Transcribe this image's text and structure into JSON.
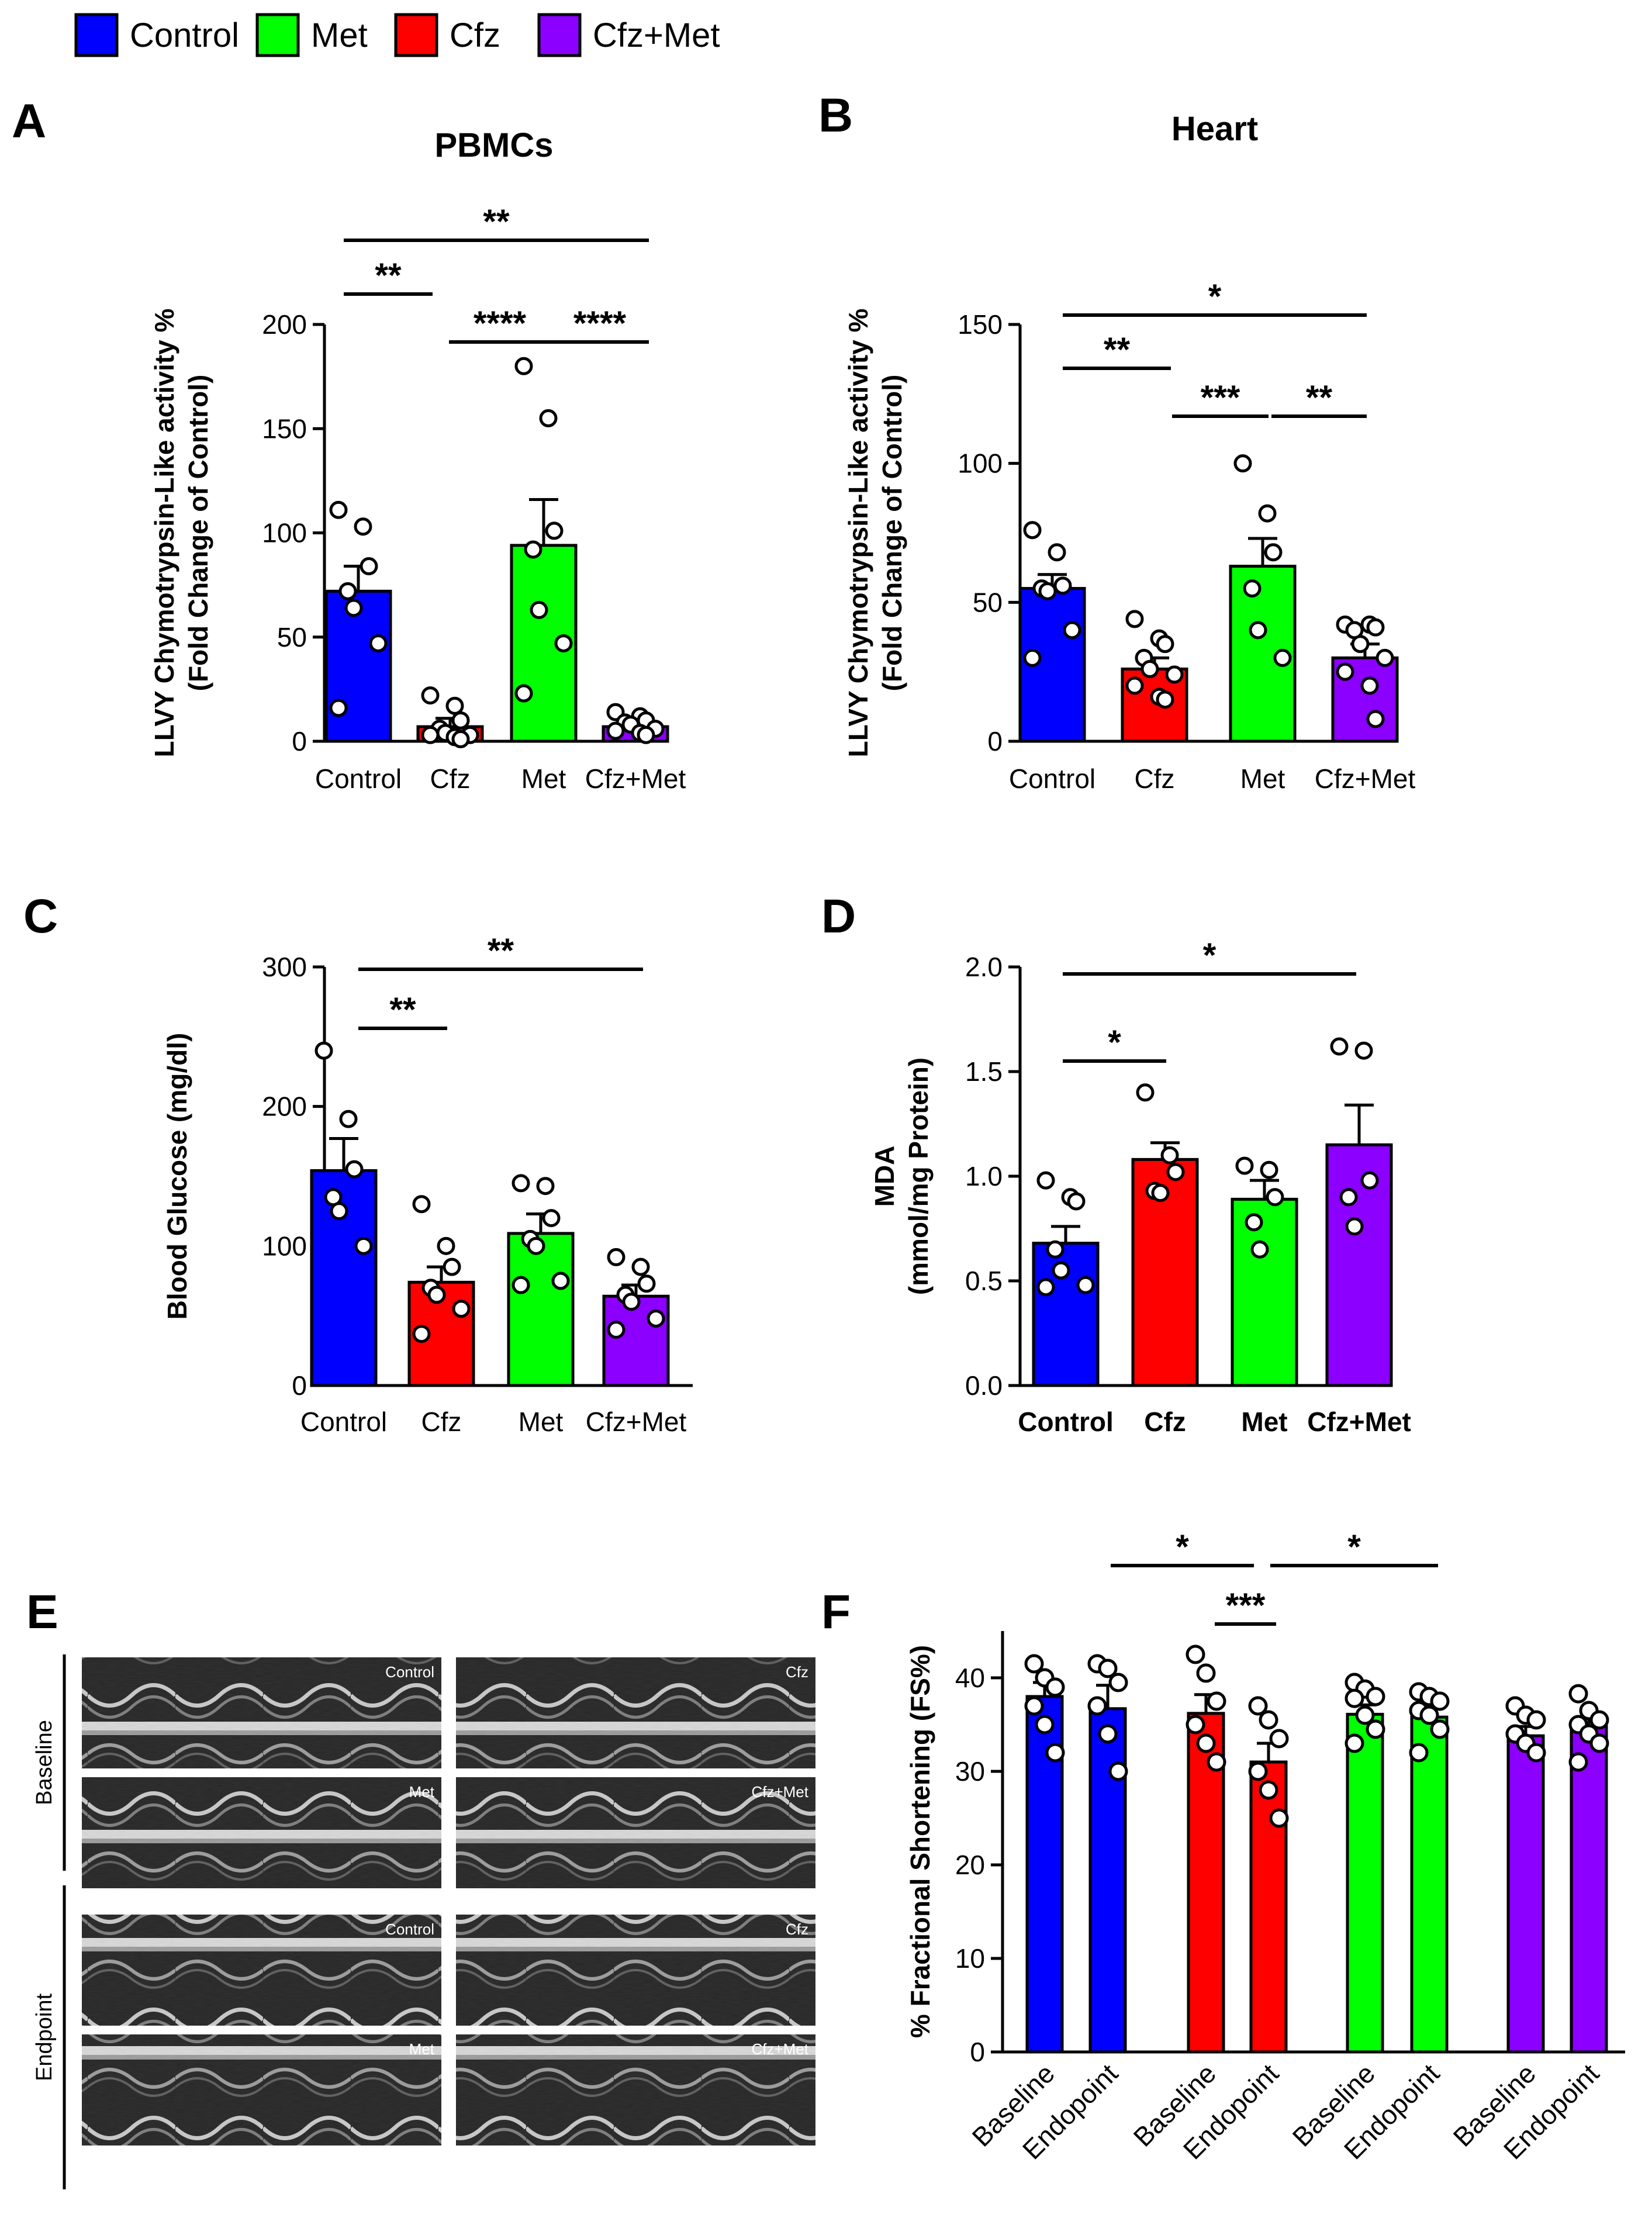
{
  "legend": [
    {
      "label": "Control",
      "color": "#0000ff"
    },
    {
      "label": "Met",
      "color": "#00ff00"
    },
    {
      "label": "Cfz",
      "color": "#ff0000"
    },
    {
      "label": "Cfz+Met",
      "color": "#8b00ff"
    }
  ],
  "colors": {
    "Control": "#0000ff",
    "Cfz": "#ff0000",
    "Met": "#00ff00",
    "Cfz+Met": "#8b00ff",
    "MetDark": "#22b022"
  },
  "chart_data": [
    {
      "panel": "A",
      "type": "bar",
      "title": "PBMCs",
      "ylabel": "LLVY Chymotrypsin-Like activity %\n(Fold Change of Control)",
      "ylim": [
        0,
        200
      ],
      "yticks": [
        0,
        50,
        100,
        150,
        200
      ],
      "categories": [
        "Control",
        "Cfz",
        "Met",
        "Cfz+Met"
      ],
      "values": [
        72,
        7,
        94,
        7
      ],
      "errors": [
        12,
        4,
        22,
        3
      ],
      "points": [
        [
          111,
          103,
          84,
          72,
          64,
          47,
          16
        ],
        [
          22,
          17,
          10,
          6,
          4,
          3,
          3,
          2,
          1
        ],
        [
          180,
          155,
          101,
          92,
          63,
          47,
          23
        ],
        [
          14,
          12,
          10,
          9,
          8,
          6,
          5,
          4,
          3
        ]
      ],
      "significance": [
        {
          "from": 0,
          "to": 1,
          "label": "**"
        },
        {
          "from": 1,
          "to": 2,
          "label": "****"
        },
        {
          "from": 2,
          "to": 3,
          "label": "****"
        },
        {
          "from": 0,
          "to": 3,
          "label": "**"
        }
      ]
    },
    {
      "panel": "B",
      "type": "bar",
      "title": "Heart",
      "ylabel": "LLVY Chymotrypsin-Like activity %\n(Fold Change of Control)",
      "ylim": [
        0,
        150
      ],
      "yticks": [
        0,
        50,
        100,
        150
      ],
      "categories": [
        "Control",
        "Cfz",
        "Met",
        "Cfz+Met"
      ],
      "values": [
        55,
        26,
        63,
        30
      ],
      "errors": [
        5,
        4,
        10,
        5
      ],
      "points": [
        [
          76,
          68,
          56,
          55,
          54,
          40,
          30
        ],
        [
          44,
          37,
          35,
          30,
          26,
          24,
          20,
          16,
          15
        ],
        [
          100,
          82,
          68,
          55,
          40,
          30
        ],
        [
          42,
          42,
          41,
          40,
          35,
          30,
          25,
          20,
          8
        ]
      ],
      "significance": [
        {
          "from": 0,
          "to": 1,
          "label": "**"
        },
        {
          "from": 1,
          "to": 2,
          "label": "***"
        },
        {
          "from": 2,
          "to": 3,
          "label": "**"
        },
        {
          "from": 0,
          "to": 3,
          "label": "*"
        }
      ]
    },
    {
      "panel": "C",
      "type": "bar",
      "title": "",
      "ylabel": "Blood Glucose (mg/dl)",
      "ylim": [
        0,
        300
      ],
      "yticks": [
        0,
        100,
        200,
        300
      ],
      "categories": [
        "Control",
        "Cfz",
        "Met",
        "Cfz+Met"
      ],
      "values": [
        154,
        74,
        109,
        64
      ],
      "errors": [
        23,
        11,
        14,
        8
      ],
      "points": [
        [
          240,
          191,
          155,
          135,
          125,
          100
        ],
        [
          130,
          100,
          85,
          70,
          65,
          55,
          37
        ],
        [
          145,
          143,
          120,
          105,
          100,
          75,
          72
        ],
        [
          92,
          85,
          73,
          65,
          60,
          48,
          40
        ]
      ],
      "significance": [
        {
          "from": 0,
          "to": 1,
          "label": "**"
        },
        {
          "from": 0,
          "to": 3,
          "label": "**"
        }
      ]
    },
    {
      "panel": "D",
      "type": "bar",
      "title": "",
      "ylabel": "MDA\n(mmol/mg Protein)",
      "ylim": [
        0,
        2.0
      ],
      "yticks": [
        "0.0",
        "0.5",
        "1.0",
        "1.5",
        "2.0"
      ],
      "categories": [
        "Control",
        "Cfz",
        "Met",
        "Cfz+Met"
      ],
      "values": [
        0.68,
        1.08,
        0.89,
        1.15
      ],
      "errors": [
        0.08,
        0.08,
        0.09,
        0.19
      ],
      "points": [
        [
          0.98,
          0.9,
          0.88,
          0.65,
          0.55,
          0.48,
          0.47
        ],
        [
          1.4,
          1.1,
          1.02,
          0.93,
          0.92
        ],
        [
          1.05,
          1.03,
          0.9,
          0.78,
          0.65
        ],
        [
          1.62,
          1.6,
          0.98,
          0.9,
          0.76
        ]
      ],
      "significance": [
        {
          "from": 0,
          "to": 1,
          "label": "*"
        },
        {
          "from": 0,
          "to": 3,
          "label": "*"
        }
      ]
    },
    {
      "panel": "F",
      "type": "bar",
      "title": "",
      "ylabel": "% Fractional Shortening (FS%)",
      "ylim": [
        0,
        45
      ],
      "yticks": [
        0,
        10,
        20,
        30,
        40
      ],
      "groups": [
        "Control",
        "Cfz",
        "Met",
        "Cfz+Met"
      ],
      "categories": [
        "Baseline",
        "Endopoint",
        "Baseline",
        "Endopoint",
        "Baseline",
        "Endopoint",
        "Baseline",
        "Endopoint"
      ],
      "values": [
        38,
        36.7,
        36.2,
        31,
        36.1,
        35.8,
        33.8,
        34.8
      ],
      "errors": [
        1.5,
        2.5,
        2.0,
        2.0,
        1.0,
        1.0,
        1.0,
        1.0
      ],
      "points": [
        [
          41.5,
          40,
          39,
          37,
          35,
          32
        ],
        [
          41.5,
          41,
          39.5,
          37,
          34,
          30
        ],
        [
          42.5,
          40.5,
          37.5,
          35,
          33,
          31
        ],
        [
          37,
          35.5,
          33.5,
          30,
          28,
          25
        ],
        [
          39.5,
          38.8,
          38,
          37.8,
          36,
          34.5,
          33
        ],
        [
          38.5,
          38,
          37.5,
          36.5,
          36,
          34.5,
          32
        ],
        [
          37,
          36,
          35.5,
          34,
          33,
          32
        ],
        [
          38.3,
          36.5,
          35.5,
          35,
          34,
          33,
          31
        ]
      ],
      "significance": [
        {
          "from": 2,
          "to": 3,
          "label": "***"
        },
        {
          "from": 1,
          "to": 3,
          "label": "*"
        },
        {
          "from": 3,
          "to": 5,
          "label": "*"
        }
      ]
    }
  ],
  "panel_letters": {
    "A": "A",
    "B": "B",
    "C": "C",
    "D": "D",
    "E": "E",
    "F": "F"
  },
  "echo": {
    "row_labels": [
      "Baseline",
      "Endpoint"
    ],
    "image_labels": [
      "Control",
      "Cfz",
      "Met",
      "Cfz+Met",
      "Control",
      "Cfz",
      "Met",
      "Cfz+Met"
    ]
  }
}
